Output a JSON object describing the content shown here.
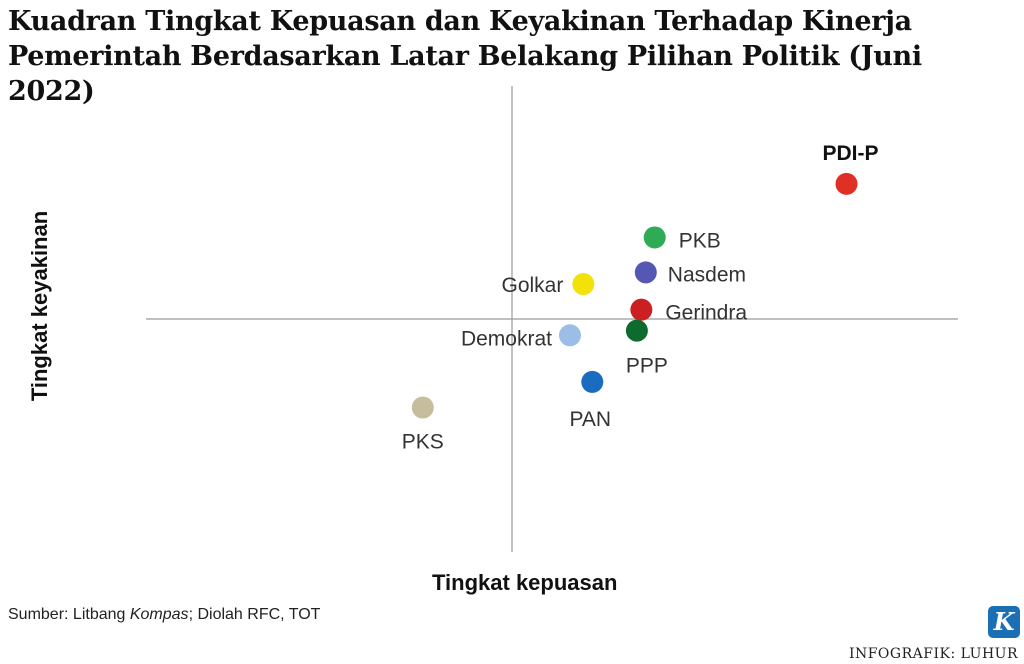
{
  "title": {
    "line1": "Kuadran Tingkat Kepuasan dan Keyakinan Terhadap Kinerja",
    "line2": "Pemerintah Berdasarkan Latar Belakang Pilihan Politik (Juni 2022)"
  },
  "chart_data": {
    "type": "scatter",
    "xlabel": "Tingkat kepuasan",
    "ylabel": "Tingkat keyakinan",
    "quadrant_axes": true,
    "grid": false,
    "points": [
      {
        "label": "PDI-P",
        "x": 0.75,
        "y": 0.58,
        "color": "#e03026",
        "label_bold": true
      },
      {
        "label": "PKB",
        "x": 0.32,
        "y": 0.35,
        "color": "#2faa55"
      },
      {
        "label": "Nasdem",
        "x": 0.3,
        "y": 0.2,
        "color": "#5558b3"
      },
      {
        "label": "Golkar",
        "x": 0.16,
        "y": 0.15,
        "color": "#f2e20a"
      },
      {
        "label": "Gerindra",
        "x": 0.29,
        "y": 0.04,
        "color": "#cc1f22"
      },
      {
        "label": "PPP",
        "x": 0.28,
        "y": -0.05,
        "color": "#0e6b2e"
      },
      {
        "label": "Demokrat",
        "x": 0.13,
        "y": -0.07,
        "color": "#9bbde6"
      },
      {
        "label": "PAN",
        "x": 0.18,
        "y": -0.27,
        "color": "#1a6cc0"
      },
      {
        "label": "PKS",
        "x": -0.2,
        "y": -0.38,
        "color": "#c5bd9b"
      }
    ],
    "xlim": [
      -1,
      1
    ],
    "ylim": [
      -1,
      1
    ]
  },
  "footer": {
    "source_prefix": "Sumber: Litbang ",
    "source_italic": "Kompas",
    "source_suffix": "; Diolah RFC, TOT",
    "logo_letter": "K",
    "credit": "INFOGRAFIK: LUHUR"
  }
}
